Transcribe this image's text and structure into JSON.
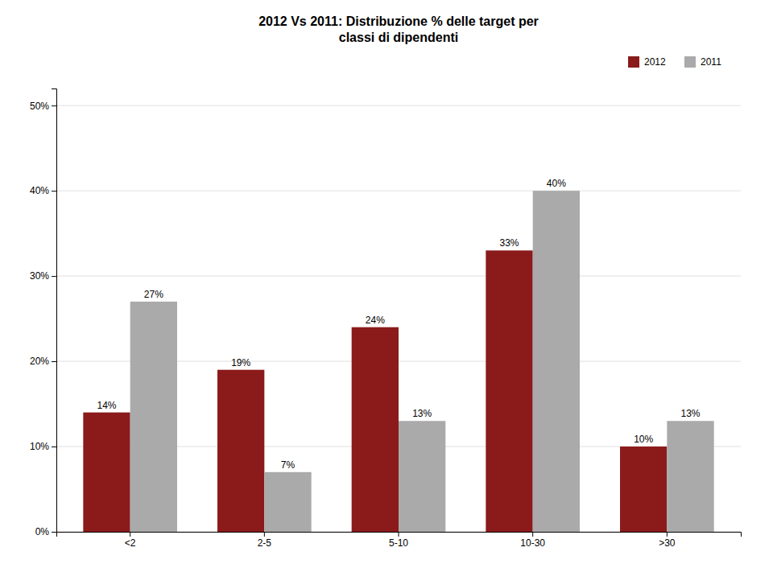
{
  "chart_data": {
    "type": "bar",
    "title": "2012 Vs 2011: Distribuzione % delle target per\nclassi di dipendenti",
    "categories": [
      "<2",
      "2-5",
      "5-10",
      "10-30",
      ">30"
    ],
    "series": [
      {
        "name": "2012",
        "color": "#8B1A1A",
        "values": [
          14,
          19,
          24,
          33,
          10
        ],
        "value_labels": [
          "14%",
          "19%",
          "24%",
          "33%",
          "10%"
        ]
      },
      {
        "name": "2011",
        "color": "#AAAAAA",
        "values": [
          27,
          7,
          13,
          40,
          13
        ],
        "value_labels": [
          "27%",
          "7%",
          "13%",
          "40%",
          "13%"
        ]
      }
    ],
    "ylim": [
      0,
      52
    ],
    "yticks": [
      {
        "value": 0,
        "label": "0%"
      },
      {
        "value": 10,
        "label": "10%"
      },
      {
        "value": 20,
        "label": "20%"
      },
      {
        "value": 30,
        "label": "30%"
      },
      {
        "value": 40,
        "label": "40%"
      },
      {
        "value": 50,
        "label": "50%"
      }
    ],
    "grid": true,
    "legend": "upper right",
    "data_labels": true
  }
}
